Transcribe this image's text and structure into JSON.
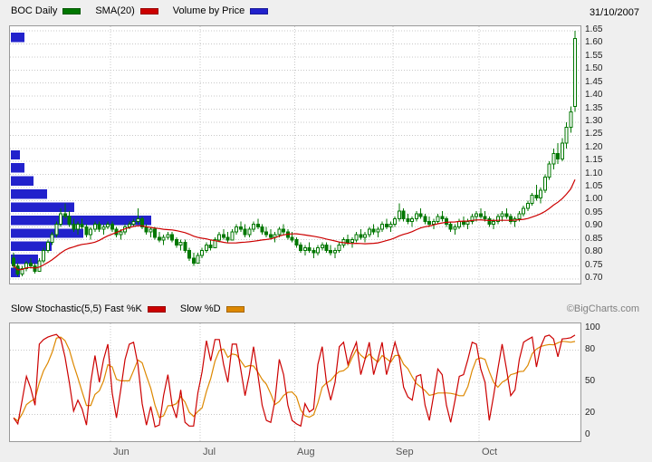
{
  "header": {
    "symbol_label": "BOC Daily",
    "sma_label": "SMA(20)",
    "volume_label": "Volume by Price",
    "date": "31/10/2007",
    "colors": {
      "price": "#007700",
      "sma": "#CC0000",
      "volume": "#2222CC"
    }
  },
  "stoch_header": {
    "label_k": "Slow Stochastic(5,5) Fast %K",
    "label_d": "Slow %D",
    "copyright": "©BigCharts.com",
    "colors": {
      "k": "#CC0000",
      "d": "#DD8800"
    }
  },
  "chart_data": {
    "type": "candlestick",
    "symbol": "BOC",
    "interval": "Daily",
    "as_of_date": "31/10/2007",
    "x_axis": {
      "month_ticks": [
        {
          "label": "Jun",
          "index": 23
        },
        {
          "label": "Jul",
          "index": 44
        },
        {
          "label": "Aug",
          "index": 66
        },
        {
          "label": "Sep",
          "index": 89
        },
        {
          "label": "Oct",
          "index": 109
        }
      ]
    },
    "price_panel": {
      "ylim": [
        0.7,
        1.65
      ],
      "ytick_labels": [
        "1.65",
        "1.60",
        "1.55",
        "1.50",
        "1.45",
        "1.40",
        "1.35",
        "1.30",
        "1.25",
        "1.20",
        "1.15",
        "1.10",
        "1.05",
        "1.00",
        "0.95",
        "0.90",
        "0.85",
        "0.80",
        "0.75",
        "0.70"
      ],
      "sma_period": 20,
      "band_size": 0.05,
      "volume_by_price": [
        [
          0.7,
          2
        ],
        [
          0.75,
          6
        ],
        [
          0.8,
          9
        ],
        [
          0.85,
          16
        ],
        [
          0.9,
          31
        ],
        [
          0.95,
          14
        ],
        [
          1.0,
          8
        ],
        [
          1.05,
          5
        ],
        [
          1.1,
          3
        ],
        [
          1.15,
          2
        ],
        [
          1.6,
          3
        ]
      ],
      "candles_ohlc": [
        [
          0.78,
          0.8,
          0.74,
          0.75
        ],
        [
          0.75,
          0.76,
          0.71,
          0.72
        ],
        [
          0.72,
          0.75,
          0.71,
          0.74
        ],
        [
          0.74,
          0.77,
          0.73,
          0.76
        ],
        [
          0.76,
          0.78,
          0.74,
          0.75
        ],
        [
          0.75,
          0.76,
          0.72,
          0.73
        ],
        [
          0.73,
          0.78,
          0.73,
          0.77
        ],
        [
          0.77,
          0.82,
          0.76,
          0.81
        ],
        [
          0.81,
          0.85,
          0.8,
          0.84
        ],
        [
          0.84,
          0.88,
          0.83,
          0.87
        ],
        [
          0.87,
          0.92,
          0.86,
          0.91
        ],
        [
          0.91,
          0.97,
          0.9,
          0.95
        ],
        [
          0.95,
          0.99,
          0.93,
          0.94
        ],
        [
          0.94,
          0.96,
          0.9,
          0.91
        ],
        [
          0.91,
          0.93,
          0.88,
          0.89
        ],
        [
          0.89,
          0.92,
          0.87,
          0.91
        ],
        [
          0.91,
          0.93,
          0.89,
          0.9
        ],
        [
          0.9,
          0.91,
          0.86,
          0.87
        ],
        [
          0.87,
          0.9,
          0.85,
          0.89
        ],
        [
          0.89,
          0.92,
          0.88,
          0.91
        ],
        [
          0.91,
          0.92,
          0.88,
          0.89
        ],
        [
          0.89,
          0.91,
          0.87,
          0.9
        ],
        [
          0.9,
          0.92,
          0.89,
          0.91
        ],
        [
          0.91,
          0.92,
          0.88,
          0.89
        ],
        [
          0.89,
          0.9,
          0.86,
          0.87
        ],
        [
          0.87,
          0.89,
          0.85,
          0.88
        ],
        [
          0.88,
          0.91,
          0.87,
          0.9
        ],
        [
          0.9,
          0.92,
          0.89,
          0.91
        ],
        [
          0.91,
          0.93,
          0.9,
          0.92
        ],
        [
          0.92,
          0.97,
          0.91,
          0.93
        ],
        [
          0.93,
          0.94,
          0.89,
          0.9
        ],
        [
          0.9,
          0.91,
          0.87,
          0.88
        ],
        [
          0.88,
          0.9,
          0.86,
          0.89
        ],
        [
          0.89,
          0.9,
          0.85,
          0.86
        ],
        [
          0.86,
          0.88,
          0.84,
          0.85
        ],
        [
          0.85,
          0.87,
          0.83,
          0.86
        ],
        [
          0.86,
          0.88,
          0.85,
          0.87
        ],
        [
          0.87,
          0.88,
          0.84,
          0.85
        ],
        [
          0.85,
          0.86,
          0.82,
          0.83
        ],
        [
          0.83,
          0.85,
          0.81,
          0.84
        ],
        [
          0.84,
          0.85,
          0.8,
          0.81
        ],
        [
          0.81,
          0.82,
          0.77,
          0.78
        ],
        [
          0.78,
          0.8,
          0.75,
          0.76
        ],
        [
          0.76,
          0.8,
          0.76,
          0.79
        ],
        [
          0.79,
          0.82,
          0.78,
          0.81
        ],
        [
          0.81,
          0.84,
          0.8,
          0.83
        ],
        [
          0.83,
          0.85,
          0.81,
          0.82
        ],
        [
          0.82,
          0.86,
          0.82,
          0.85
        ],
        [
          0.85,
          0.88,
          0.84,
          0.87
        ],
        [
          0.87,
          0.89,
          0.85,
          0.86
        ],
        [
          0.86,
          0.88,
          0.84,
          0.85
        ],
        [
          0.85,
          0.89,
          0.85,
          0.88
        ],
        [
          0.88,
          0.91,
          0.87,
          0.9
        ],
        [
          0.9,
          0.92,
          0.88,
          0.89
        ],
        [
          0.89,
          0.91,
          0.86,
          0.87
        ],
        [
          0.87,
          0.9,
          0.86,
          0.89
        ],
        [
          0.89,
          0.92,
          0.88,
          0.91
        ],
        [
          0.91,
          0.93,
          0.89,
          0.9
        ],
        [
          0.9,
          0.91,
          0.87,
          0.88
        ],
        [
          0.88,
          0.9,
          0.86,
          0.87
        ],
        [
          0.87,
          0.89,
          0.85,
          0.86
        ],
        [
          0.86,
          0.88,
          0.84,
          0.87
        ],
        [
          0.87,
          0.9,
          0.86,
          0.89
        ],
        [
          0.89,
          0.91,
          0.87,
          0.88
        ],
        [
          0.88,
          0.89,
          0.85,
          0.86
        ],
        [
          0.86,
          0.88,
          0.84,
          0.85
        ],
        [
          0.85,
          0.86,
          0.82,
          0.83
        ],
        [
          0.83,
          0.84,
          0.8,
          0.81
        ],
        [
          0.81,
          0.83,
          0.79,
          0.82
        ],
        [
          0.82,
          0.84,
          0.8,
          0.81
        ],
        [
          0.81,
          0.82,
          0.78,
          0.8
        ],
        [
          0.8,
          0.83,
          0.79,
          0.82
        ],
        [
          0.82,
          0.84,
          0.81,
          0.83
        ],
        [
          0.83,
          0.84,
          0.8,
          0.81
        ],
        [
          0.81,
          0.83,
          0.79,
          0.8
        ],
        [
          0.8,
          0.82,
          0.78,
          0.81
        ],
        [
          0.81,
          0.84,
          0.8,
          0.83
        ],
        [
          0.83,
          0.86,
          0.82,
          0.85
        ],
        [
          0.85,
          0.87,
          0.83,
          0.84
        ],
        [
          0.84,
          0.86,
          0.82,
          0.85
        ],
        [
          0.85,
          0.88,
          0.84,
          0.87
        ],
        [
          0.87,
          0.89,
          0.85,
          0.86
        ],
        [
          0.86,
          0.88,
          0.84,
          0.87
        ],
        [
          0.87,
          0.9,
          0.86,
          0.89
        ],
        [
          0.89,
          0.91,
          0.87,
          0.88
        ],
        [
          0.88,
          0.9,
          0.86,
          0.89
        ],
        [
          0.89,
          0.92,
          0.88,
          0.91
        ],
        [
          0.91,
          0.93,
          0.89,
          0.9
        ],
        [
          0.9,
          0.92,
          0.88,
          0.91
        ],
        [
          0.91,
          0.94,
          0.9,
          0.93
        ],
        [
          0.93,
          0.99,
          0.92,
          0.96
        ],
        [
          0.96,
          0.97,
          0.92,
          0.93
        ],
        [
          0.93,
          0.95,
          0.91,
          0.92
        ],
        [
          0.92,
          0.94,
          0.9,
          0.93
        ],
        [
          0.93,
          0.96,
          0.92,
          0.95
        ],
        [
          0.95,
          0.97,
          0.93,
          0.94
        ],
        [
          0.94,
          0.95,
          0.91,
          0.92
        ],
        [
          0.92,
          0.94,
          0.9,
          0.91
        ],
        [
          0.91,
          0.93,
          0.89,
          0.92
        ],
        [
          0.92,
          0.95,
          0.91,
          0.94
        ],
        [
          0.94,
          0.96,
          0.92,
          0.93
        ],
        [
          0.93,
          0.94,
          0.9,
          0.91
        ],
        [
          0.91,
          0.92,
          0.88,
          0.89
        ],
        [
          0.89,
          0.91,
          0.87,
          0.9
        ],
        [
          0.9,
          0.93,
          0.89,
          0.92
        ],
        [
          0.92,
          0.94,
          0.9,
          0.91
        ],
        [
          0.91,
          0.93,
          0.89,
          0.92
        ],
        [
          0.92,
          0.95,
          0.91,
          0.94
        ],
        [
          0.94,
          0.96,
          0.92,
          0.95
        ],
        [
          0.95,
          0.97,
          0.93,
          0.94
        ],
        [
          0.94,
          0.96,
          0.92,
          0.93
        ],
        [
          0.93,
          0.94,
          0.9,
          0.91
        ],
        [
          0.91,
          0.93,
          0.89,
          0.92
        ],
        [
          0.92,
          0.95,
          0.91,
          0.94
        ],
        [
          0.94,
          0.96,
          0.92,
          0.95
        ],
        [
          0.95,
          0.97,
          0.93,
          0.94
        ],
        [
          0.94,
          0.95,
          0.91,
          0.92
        ],
        [
          0.92,
          0.94,
          0.9,
          0.93
        ],
        [
          0.93,
          0.96,
          0.92,
          0.95
        ],
        [
          0.95,
          0.98,
          0.94,
          0.97
        ],
        [
          0.97,
          1.0,
          0.96,
          0.99
        ],
        [
          0.99,
          1.03,
          0.98,
          1.02
        ],
        [
          1.02,
          1.06,
          1.0,
          1.01
        ],
        [
          1.01,
          1.05,
          0.99,
          1.04
        ],
        [
          1.04,
          1.1,
          1.03,
          1.09
        ],
        [
          1.09,
          1.15,
          1.08,
          1.14
        ],
        [
          1.14,
          1.2,
          1.12,
          1.18
        ],
        [
          1.18,
          1.22,
          1.14,
          1.16
        ],
        [
          1.16,
          1.24,
          1.15,
          1.22
        ],
        [
          1.22,
          1.3,
          1.2,
          1.28
        ],
        [
          1.28,
          1.36,
          1.26,
          1.34
        ],
        [
          1.36,
          1.65,
          1.34,
          1.62
        ]
      ]
    },
    "stochastic_panel": {
      "ylim": [
        0,
        100
      ],
      "ytick_labels": [
        "100",
        "80",
        "50",
        "20",
        "0"
      ],
      "grid_values": [
        80,
        50,
        20
      ],
      "k_period": 5,
      "d_smooth": 5
    }
  }
}
